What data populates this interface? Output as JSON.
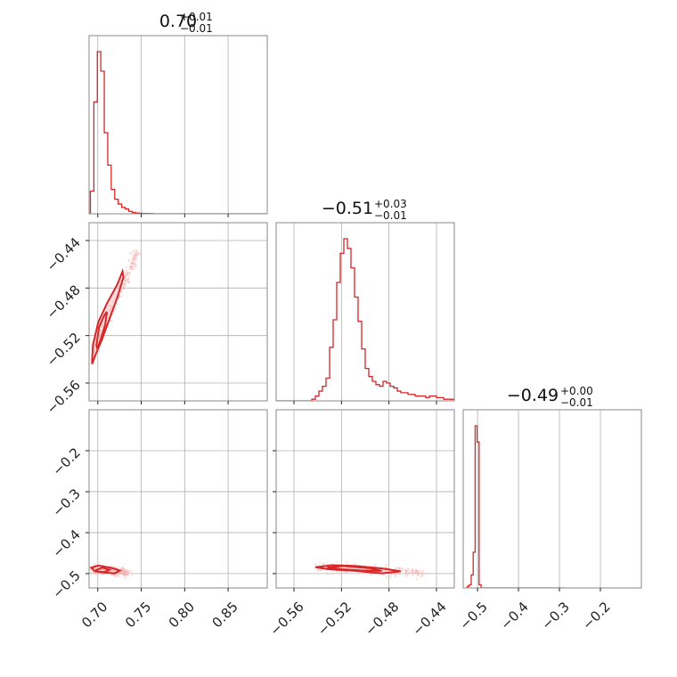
{
  "chart_data": {
    "type": "corner",
    "colors": {
      "series": "#d62728",
      "frame": "#888888",
      "grid": "#b0b0b0"
    },
    "parameters": [
      {
        "title_value": "0.70",
        "title_plus": "+0.01",
        "title_minus": "−0.01",
        "range": [
          0.69,
          0.895
        ]
      },
      {
        "title_value": "−0.51",
        "title_plus": "+0.03",
        "title_minus": "−0.01",
        "range": [
          -0.575,
          -0.425
        ]
      },
      {
        "title_value": "−0.49",
        "title_plus": "+0.00",
        "title_minus": "−0.01",
        "range": [
          -0.535,
          -0.1
        ]
      }
    ],
    "ticks": [
      {
        "values": [
          0.7,
          0.75,
          0.8,
          0.85
        ],
        "labels": [
          "0.70",
          "0.75",
          "0.80",
          "0.85"
        ]
      },
      {
        "values": [
          -0.56,
          -0.52,
          -0.48,
          -0.44
        ],
        "labels": [
          "−0.56",
          "−0.52",
          "−0.48",
          "−0.44"
        ]
      },
      {
        "values": [
          -0.5,
          -0.4,
          -0.3,
          -0.2
        ],
        "labels": [
          "−0.5",
          "−0.4",
          "−0.3",
          "−0.2"
        ]
      }
    ],
    "histograms": [
      {
        "param": 0,
        "bin_start": 0.6915,
        "bin_width": 0.004,
        "heights": [
          0.14,
          0.69,
          1.0,
          0.88,
          0.5,
          0.3,
          0.15,
          0.09,
          0.06,
          0.04,
          0.03,
          0.015,
          0.008,
          0.005,
          0.003,
          0.002,
          0.001,
          0.001,
          0,
          0,
          0,
          0,
          0,
          0,
          0,
          0,
          0,
          0,
          0,
          0,
          0,
          0,
          0,
          0,
          0,
          0,
          0,
          0,
          0,
          0,
          0,
          0,
          0,
          0,
          0,
          0,
          0,
          0,
          0,
          0,
          0
        ]
      },
      {
        "param": 1,
        "bin_start": -0.575,
        "bin_width": 0.003,
        "heights": [
          0,
          0,
          0,
          0,
          0,
          0,
          0,
          0,
          0,
          0,
          0.01,
          0.03,
          0.06,
          0.09,
          0.14,
          0.33,
          0.5,
          0.73,
          0.91,
          1.0,
          0.94,
          0.82,
          0.64,
          0.49,
          0.32,
          0.2,
          0.15,
          0.12,
          0.1,
          0.09,
          0.12,
          0.11,
          0.09,
          0.08,
          0.06,
          0.05,
          0.05,
          0.04,
          0.04,
          0.03,
          0.03,
          0.03,
          0.02,
          0.03,
          0.03,
          0.02,
          0.02,
          0.01,
          0.01,
          0.01
        ]
      },
      {
        "param": 2,
        "bin_start": -0.525,
        "bin_width": 0.0048,
        "heights": [
          0.01,
          0.02,
          0.08,
          0.22,
          1.0,
          0.9,
          0.02,
          0,
          0,
          0,
          0,
          0,
          0,
          0,
          0,
          0,
          0,
          0,
          0,
          0,
          0,
          0,
          0,
          0,
          0,
          0,
          0,
          0,
          0,
          0,
          0,
          0,
          0,
          0,
          0,
          0,
          0,
          0,
          0,
          0,
          0,
          0,
          0,
          0,
          0,
          0,
          0,
          0,
          0,
          0
        ]
      }
    ],
    "density_2d": [
      {
        "x_param": 0,
        "y_param": 1,
        "contour_inner": [
          [
            0.6985,
            -0.528
          ],
          [
            0.7015,
            -0.513
          ],
          [
            0.7075,
            -0.503
          ],
          [
            0.7105,
            -0.5
          ],
          [
            0.7085,
            -0.511
          ],
          [
            0.7035,
            -0.523
          ],
          [
            0.6995,
            -0.531
          ]
        ],
        "contour_outer": [
          [
            0.6935,
            -0.54
          ],
          [
            0.6945,
            -0.528
          ],
          [
            0.7005,
            -0.509
          ],
          [
            0.7105,
            -0.493
          ],
          [
            0.7225,
            -0.477
          ],
          [
            0.7285,
            -0.466
          ],
          [
            0.7295,
            -0.471
          ],
          [
            0.7225,
            -0.488
          ],
          [
            0.7135,
            -0.506
          ],
          [
            0.7045,
            -0.524
          ],
          [
            0.6975,
            -0.536
          ],
          [
            0.6935,
            -0.544
          ]
        ],
        "cloud_center": [
          [
            0.696,
            -0.532
          ],
          [
            0.705,
            -0.515
          ],
          [
            0.716,
            -0.498
          ],
          [
            0.728,
            -0.48
          ],
          [
            0.738,
            -0.463
          ],
          [
            0.746,
            -0.448
          ]
        ]
      },
      {
        "x_param": 0,
        "y_param": 2,
        "contour_inner": [
          [
            0.6985,
            -0.491
          ],
          [
            0.7055,
            -0.4855
          ],
          [
            0.7135,
            -0.4905
          ],
          [
            0.7075,
            -0.4965
          ],
          [
            0.7005,
            -0.4955
          ]
        ],
        "contour_outer": [
          [
            0.6925,
            -0.4855
          ],
          [
            0.7005,
            -0.4805
          ],
          [
            0.7145,
            -0.4855
          ],
          [
            0.7255,
            -0.4925
          ],
          [
            0.7195,
            -0.4995
          ],
          [
            0.7085,
            -0.4975
          ],
          [
            0.6965,
            -0.4945
          ]
        ],
        "cloud_center": [
          [
            0.695,
            -0.488
          ],
          [
            0.705,
            -0.49
          ],
          [
            0.715,
            -0.493
          ],
          [
            0.725,
            -0.496
          ],
          [
            0.735,
            -0.499
          ]
        ]
      },
      {
        "x_param": 1,
        "y_param": 2,
        "contour_inner": [
          [
            -0.532,
            -0.4855
          ],
          [
            -0.518,
            -0.4815
          ],
          [
            -0.497,
            -0.4865
          ],
          [
            -0.486,
            -0.4935
          ],
          [
            -0.502,
            -0.4925
          ],
          [
            -0.52,
            -0.4895
          ]
        ],
        "contour_outer": [
          [
            -0.542,
            -0.4845
          ],
          [
            -0.528,
            -0.4795
          ],
          [
            -0.508,
            -0.4815
          ],
          [
            -0.486,
            -0.4875
          ],
          [
            -0.47,
            -0.4945
          ],
          [
            -0.486,
            -0.4995
          ],
          [
            -0.508,
            -0.4935
          ],
          [
            -0.53,
            -0.4895
          ]
        ],
        "cloud_center": [
          [
            -0.54,
            -0.485
          ],
          [
            -0.525,
            -0.486
          ],
          [
            -0.51,
            -0.488
          ],
          [
            -0.495,
            -0.491
          ],
          [
            -0.48,
            -0.494
          ],
          [
            -0.465,
            -0.497
          ],
          [
            -0.45,
            -0.499
          ]
        ]
      }
    ]
  }
}
